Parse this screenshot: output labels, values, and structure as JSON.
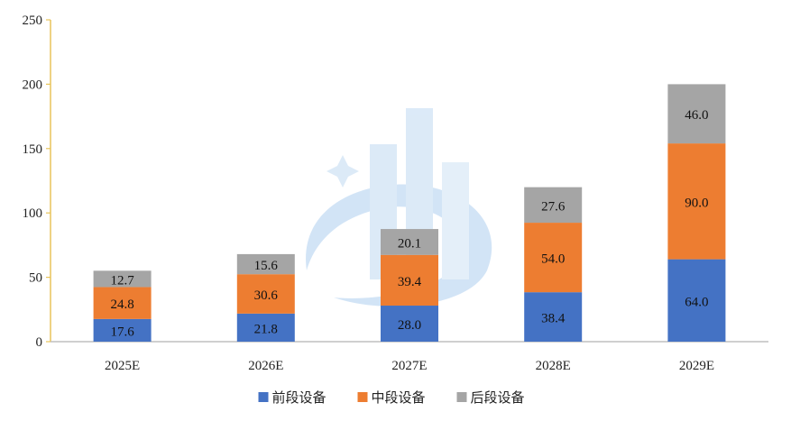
{
  "chart_data": {
    "type": "bar",
    "stacked": true,
    "categories": [
      "2025E",
      "2026E",
      "2027E",
      "2028E",
      "2029E"
    ],
    "series": [
      {
        "name": "前段设备",
        "color": "#4472c4",
        "values": [
          17.6,
          21.8,
          28.0,
          38.4,
          64.0
        ]
      },
      {
        "name": "中段设备",
        "color": "#ed7d31",
        "values": [
          24.8,
          30.6,
          39.4,
          54.0,
          90.0
        ]
      },
      {
        "name": "后段设备",
        "color": "#a5a5a5",
        "values": [
          12.7,
          15.6,
          20.1,
          27.6,
          46.0
        ]
      }
    ],
    "ylim": [
      0,
      250
    ],
    "yticks": [
      0,
      50,
      100,
      150,
      200,
      250
    ],
    "title": "",
    "xlabel": "",
    "ylabel": "",
    "grid": false,
    "legend_position": "bottom",
    "y_axis_color": "#e8c45a",
    "x_axis_color": "#bfbfbf"
  }
}
